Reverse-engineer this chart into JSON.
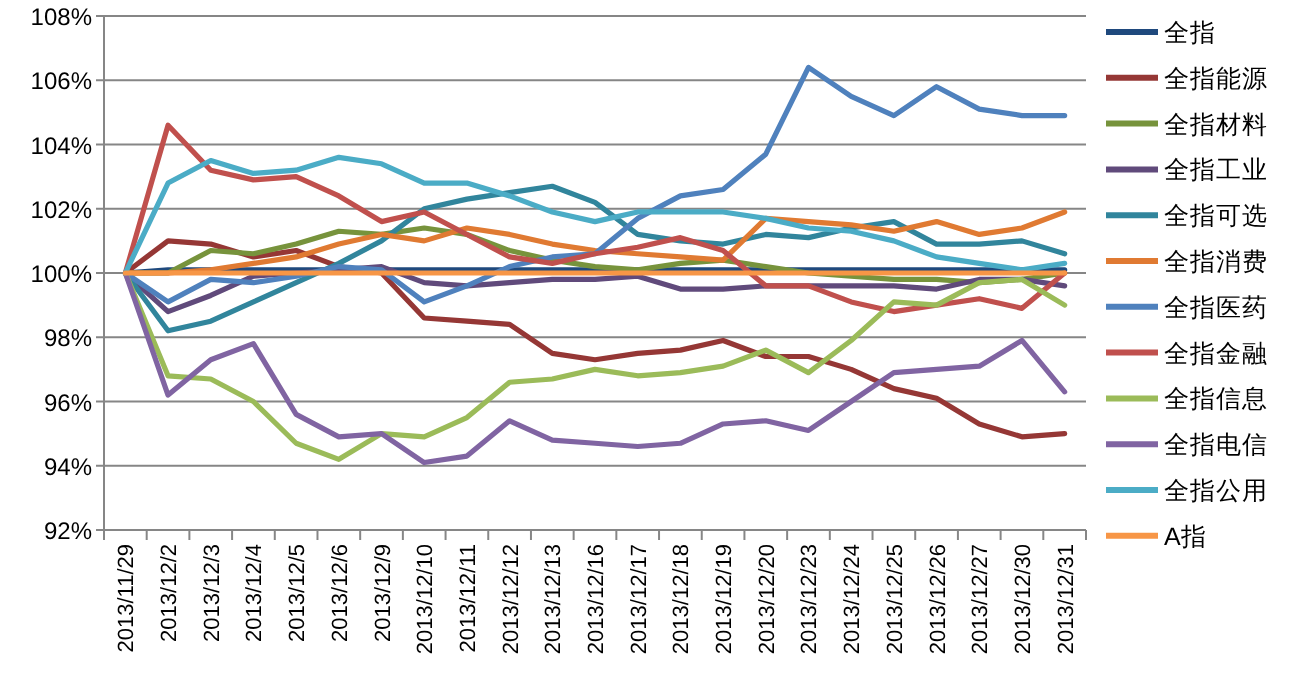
{
  "chart_data": {
    "type": "line",
    "categories": [
      "2013/11/29",
      "2013/12/2",
      "2013/12/3",
      "2013/12/4",
      "2013/12/5",
      "2013/12/6",
      "2013/12/9",
      "2013/12/10",
      "2013/12/11",
      "2013/12/12",
      "2013/12/13",
      "2013/12/16",
      "2013/12/17",
      "2013/12/18",
      "2013/12/19",
      "2013/12/20",
      "2013/12/23",
      "2013/12/24",
      "2013/12/25",
      "2013/12/26",
      "2013/12/27",
      "2013/12/30",
      "2013/12/31"
    ],
    "series": [
      {
        "name": "全指",
        "color": "#1f497d",
        "values": [
          100,
          100.1,
          100.1,
          100.1,
          100.1,
          100.1,
          100.1,
          100.1,
          100.1,
          100.1,
          100.1,
          100.1,
          100.1,
          100.1,
          100.1,
          100.1,
          100.1,
          100.1,
          100.1,
          100.1,
          100.1,
          100.1,
          100.1
        ]
      },
      {
        "name": "全指能源",
        "color": "#953735",
        "values": [
          100,
          101.0,
          100.9,
          100.5,
          100.7,
          100.2,
          100.0,
          98.6,
          98.5,
          98.4,
          97.5,
          97.3,
          97.5,
          97.6,
          97.9,
          97.4,
          97.4,
          97.0,
          96.4,
          96.1,
          95.3,
          94.9,
          95.0
        ]
      },
      {
        "name": "全指材料",
        "color": "#77933c",
        "values": [
          100,
          100.0,
          100.7,
          100.6,
          100.9,
          101.3,
          101.2,
          101.4,
          101.2,
          100.7,
          100.4,
          100.2,
          100.1,
          100.3,
          100.4,
          100.2,
          100.0,
          99.9,
          99.8,
          99.8,
          99.7,
          99.8,
          100.0
        ]
      },
      {
        "name": "全指工业",
        "color": "#604a7b",
        "values": [
          100,
          98.8,
          99.3,
          99.9,
          100.0,
          100.1,
          100.2,
          99.7,
          99.6,
          99.7,
          99.8,
          99.8,
          99.9,
          99.5,
          99.5,
          99.6,
          99.6,
          99.6,
          99.6,
          99.5,
          99.8,
          99.8,
          99.6
        ]
      },
      {
        "name": "全指可选",
        "color": "#31859c",
        "values": [
          100,
          98.2,
          98.5,
          99.1,
          99.7,
          100.3,
          101.0,
          102.0,
          102.3,
          102.5,
          102.7,
          102.2,
          101.2,
          101.0,
          100.9,
          101.2,
          101.1,
          101.4,
          101.6,
          100.9,
          100.9,
          101.0,
          100.6
        ]
      },
      {
        "name": "全指消费",
        "color": "#e07a32",
        "values": [
          100,
          100.0,
          100.1,
          100.3,
          100.5,
          100.9,
          101.2,
          101.0,
          101.4,
          101.2,
          100.9,
          100.7,
          100.6,
          100.5,
          100.4,
          101.7,
          101.6,
          101.5,
          101.3,
          101.6,
          101.2,
          101.4,
          101.9
        ]
      },
      {
        "name": "全指医药",
        "color": "#4f81bd",
        "values": [
          100,
          99.1,
          99.8,
          99.7,
          99.9,
          100.2,
          100.1,
          99.1,
          99.6,
          100.2,
          100.5,
          100.6,
          101.7,
          102.4,
          102.6,
          103.7,
          106.4,
          105.5,
          104.9,
          105.8,
          105.1,
          104.9,
          104.9
        ]
      },
      {
        "name": "全指金融",
        "color": "#c0504d",
        "values": [
          100,
          104.6,
          103.2,
          102.9,
          103.0,
          102.4,
          101.6,
          101.9,
          101.2,
          100.5,
          100.3,
          100.6,
          100.8,
          101.1,
          100.7,
          99.6,
          99.6,
          99.1,
          98.8,
          99.0,
          99.2,
          98.9,
          100.0
        ]
      },
      {
        "name": "全指信息",
        "color": "#9bbb59",
        "values": [
          100,
          96.8,
          96.7,
          96.0,
          94.7,
          94.2,
          95.0,
          94.9,
          95.5,
          96.6,
          96.7,
          97.0,
          96.8,
          96.9,
          97.1,
          97.6,
          96.9,
          97.9,
          99.1,
          99.0,
          99.7,
          99.8,
          99.0
        ]
      },
      {
        "name": "全指电信",
        "color": "#8064a2",
        "values": [
          100,
          96.2,
          97.3,
          97.8,
          95.6,
          94.9,
          95.0,
          94.1,
          94.3,
          95.4,
          94.8,
          94.7,
          94.6,
          94.7,
          95.3,
          95.4,
          95.1,
          96.0,
          96.9,
          97.0,
          97.1,
          97.9,
          96.3
        ]
      },
      {
        "name": "全指公用",
        "color": "#4bacc6",
        "values": [
          100,
          102.8,
          103.5,
          103.1,
          103.2,
          103.6,
          103.4,
          102.8,
          102.8,
          102.4,
          101.9,
          101.6,
          101.9,
          101.9,
          101.9,
          101.7,
          101.4,
          101.3,
          101.0,
          100.5,
          100.3,
          100.1,
          100.3
        ]
      },
      {
        "name": "A指",
        "color": "#f79646",
        "values": [
          100,
          100.0,
          100.0,
          100.0,
          100.0,
          100.0,
          100.0,
          100.0,
          100.0,
          100.0,
          100.0,
          100.0,
          100.0,
          100.0,
          100.0,
          100.0,
          100.0,
          100.0,
          100.0,
          100.0,
          100.0,
          100.0,
          100.0
        ]
      }
    ],
    "ylim": [
      92,
      108
    ],
    "yticks": [
      {
        "value": 92,
        "label": "92%"
      },
      {
        "value": 94,
        "label": "94%"
      },
      {
        "value": 96,
        "label": "96%"
      },
      {
        "value": 98,
        "label": "98%"
      },
      {
        "value": 100,
        "label": "100%"
      },
      {
        "value": 102,
        "label": "102%"
      },
      {
        "value": 104,
        "label": "104%"
      },
      {
        "value": 106,
        "label": "106%"
      },
      {
        "value": 108,
        "label": "108%"
      }
    ],
    "grid": "y",
    "legend": "right"
  }
}
